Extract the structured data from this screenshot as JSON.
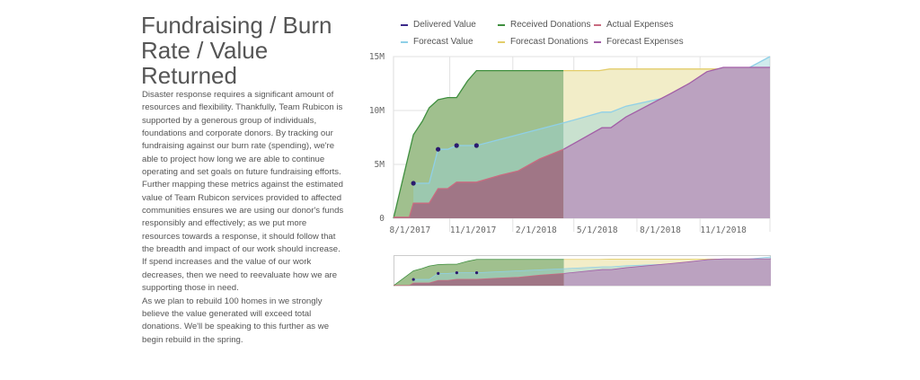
{
  "title": "Fundraising / Burn Rate / Value Returned",
  "paragraphs": [
    "Disaster response requires a significant amount of resources and flexibility. Thankfully, Team Rubicon is supported by a generous group of individuals, foundations and corporate donors. By tracking our fundraising against our burn rate (spending), we're able to project how long we are able to continue operating and set goals on future fundraising efforts. Further mapping these metrics against the estimated value of Team Rubicon services provided to affected communities ensures we are using our donor's funds responsibly and effectively; as we put more resources towards a response, it should follow that the breadth and impact of our work should increase. If spend increases and the value of our work decreases, then we need to reevaluate how we are supporting those in need.",
    "As we plan to rebuild 100 homes in we strongly believe the value generated will exceed total donations. We'll be speaking to this further as we begin rebuild in the spring."
  ],
  "chart_data": {
    "type": "area",
    "title": "",
    "xlabel": "",
    "ylabel": "",
    "xlim": [
      "2017-08-11",
      "2019-02-11"
    ],
    "ylim": [
      0,
      15000000
    ],
    "grid": true,
    "legend_position": "top",
    "x_ticks": [
      {
        "date": "2017-08-01",
        "label": "8/1/2017"
      },
      {
        "date": "2017-11-01",
        "label": "11/1/2017"
      },
      {
        "date": "2018-02-01",
        "label": "2/1/2018"
      },
      {
        "date": "2018-05-01",
        "label": "5/1/2018"
      },
      {
        "date": "2018-08-01",
        "label": "8/1/2018"
      },
      {
        "date": "2018-11-01",
        "label": "11/1/2018"
      }
    ],
    "y_ticks": [
      {
        "value": 0,
        "label": "0"
      },
      {
        "value": 5000000,
        "label": "5M"
      },
      {
        "value": 10000000,
        "label": "10M"
      },
      {
        "value": 15000000,
        "label": "15M"
      }
    ],
    "series": [
      {
        "name": "Received Donations",
        "key": "received",
        "color": "#3f8f3f",
        "fill": "#a0c08e",
        "points": [
          [
            "2017-08-11",
            0
          ],
          [
            "2017-09-09",
            7750000
          ],
          [
            "2017-09-22",
            9000000
          ],
          [
            "2017-10-02",
            10250000
          ],
          [
            "2017-10-15",
            11000000
          ],
          [
            "2017-10-29",
            11200000
          ],
          [
            "2017-11-11",
            11200000
          ],
          [
            "2017-11-27",
            12750000
          ],
          [
            "2017-12-10",
            13700000
          ],
          [
            "2018-04-16",
            13700000
          ]
        ]
      },
      {
        "name": "Forecast Donations",
        "key": "forecast_donations",
        "color": "#e3cd6a",
        "fill": "#f2edc8",
        "points": [
          [
            "2018-04-16",
            13700000
          ],
          [
            "2018-06-07",
            13700000
          ],
          [
            "2018-06-22",
            13850000
          ],
          [
            "2019-02-11",
            13850000
          ]
        ]
      },
      {
        "name": "Forecast Value",
        "key": "forecast_value",
        "color": "#8fd0e8",
        "fill": "rgba(150,210,215,0.45)",
        "points": [
          [
            "2017-09-09",
            3250000
          ],
          [
            "2017-10-02",
            3250000
          ],
          [
            "2017-10-15",
            6400000
          ],
          [
            "2017-10-29",
            6400000
          ],
          [
            "2017-11-11",
            6750000
          ],
          [
            "2017-12-10",
            6750000
          ],
          [
            "2018-04-16",
            8850000
          ],
          [
            "2018-06-11",
            9850000
          ],
          [
            "2018-06-24",
            9850000
          ],
          [
            "2018-07-16",
            10400000
          ],
          [
            "2018-09-20",
            11300000
          ],
          [
            "2018-10-16",
            11700000
          ],
          [
            "2018-12-11",
            12900000
          ],
          [
            "2019-02-11",
            15000000
          ]
        ]
      },
      {
        "name": "Actual Expenses",
        "key": "actual_expenses",
        "color": "#c96b80",
        "fill": "#a07686",
        "points": [
          [
            "2017-08-11",
            100000
          ],
          [
            "2017-09-03",
            100000
          ],
          [
            "2017-09-09",
            1400000
          ],
          [
            "2017-10-02",
            1400000
          ],
          [
            "2017-10-15",
            2750000
          ],
          [
            "2017-10-29",
            2750000
          ],
          [
            "2017-11-11",
            3350000
          ],
          [
            "2017-12-10",
            3350000
          ],
          [
            "2018-01-14",
            4000000
          ],
          [
            "2018-02-09",
            4400000
          ],
          [
            "2018-03-12",
            5500000
          ],
          [
            "2018-04-16",
            6400000
          ]
        ]
      },
      {
        "name": "Forecast Expenses",
        "key": "forecast_expenses",
        "color": "#a25ea6",
        "fill": "#bba2c0",
        "points": [
          [
            "2018-04-16",
            6400000
          ],
          [
            "2018-06-11",
            8400000
          ],
          [
            "2018-06-24",
            8400000
          ],
          [
            "2018-07-16",
            9400000
          ],
          [
            "2018-09-20",
            11600000
          ],
          [
            "2018-10-16",
            12500000
          ],
          [
            "2018-11-11",
            13600000
          ],
          [
            "2018-12-05",
            14000000
          ],
          [
            "2019-02-11",
            14000000
          ]
        ]
      },
      {
        "name": "Delivered Value",
        "key": "delivered_value",
        "color": "#2b1a6e",
        "type": "scatter",
        "points": [
          [
            "2017-09-09",
            3250000
          ],
          [
            "2017-10-15",
            6400000
          ],
          [
            "2017-11-11",
            6750000
          ],
          [
            "2017-12-10",
            6750000
          ]
        ]
      }
    ]
  },
  "legend": [
    {
      "label": "Delivered Value",
      "color": "#3b2a8a"
    },
    {
      "label": "Received Donations",
      "color": "#3f8f3f"
    },
    {
      "label": "Actual Expenses",
      "color": "#c96b80"
    },
    {
      "label": "Forecast Value",
      "color": "#8fd0e8"
    },
    {
      "label": "Forecast Donations",
      "color": "#e3cd6a"
    },
    {
      "label": "Forecast Expenses",
      "color": "#a25ea6"
    }
  ]
}
